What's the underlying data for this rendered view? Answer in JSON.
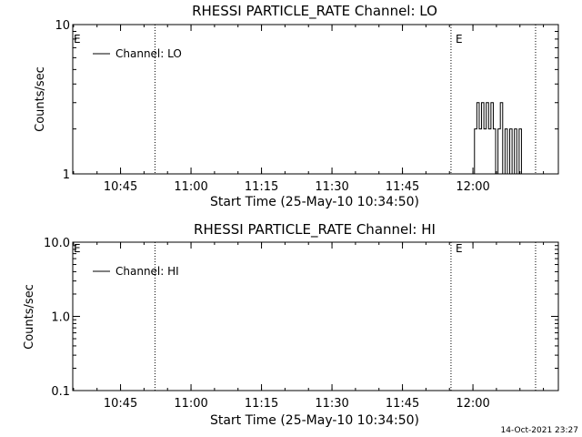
{
  "footer": {
    "timestamp": "14-Oct-2021 23:27"
  },
  "chart_data": [
    {
      "type": "line",
      "title": "RHESSI PARTICLE_RATE Channel: LO",
      "xlabel": "Start Time (25-May-10 10:34:50)",
      "ylabel": "Counts/sec",
      "yscale": "log",
      "ylim": [
        1,
        10
      ],
      "xlim_min_from_start": [
        0,
        92
      ],
      "x_ticks": [
        {
          "label": "10:45",
          "min": 10.17
        },
        {
          "label": "11:00",
          "min": 25.17
        },
        {
          "label": "11:15",
          "min": 40.17
        },
        {
          "label": "11:30",
          "min": 55.17
        },
        {
          "label": "11:45",
          "min": 70.17
        },
        {
          "label": "12:00",
          "min": 85.17
        }
      ],
      "y_ticks": [
        {
          "label": "10",
          "value": 10
        },
        {
          "label": "1",
          "value": 1
        }
      ],
      "event_lines": [
        {
          "min": 17.5,
          "label": ""
        },
        {
          "min": 80.5,
          "label": "E"
        },
        {
          "min": 98.5,
          "label": ""
        }
      ],
      "start_label": "E",
      "legend": {
        "position": "top-left",
        "label": "Channel: LO"
      },
      "series": [
        {
          "name": "Channel: LO",
          "x": [
            85.0,
            85.5,
            86.0,
            86.5,
            87.0,
            87.5,
            88.0,
            88.5,
            89.0,
            89.5,
            90.0,
            90.5,
            91.0,
            91.5,
            92.0,
            92.5,
            93.0,
            93.5,
            94.0,
            94.5,
            95.0,
            95.5,
            96.0
          ],
          "y": [
            1,
            2,
            3,
            2,
            3,
            2,
            3,
            2,
            3,
            2,
            1,
            2,
            3,
            1,
            2,
            1,
            2,
            1,
            2,
            1,
            2,
            1,
            1
          ]
        }
      ]
    },
    {
      "type": "line",
      "title": "RHESSI PARTICLE_RATE Channel: HI",
      "xlabel": "Start Time (25-May-10 10:34:50)",
      "ylabel": "Counts/sec",
      "yscale": "log",
      "ylim": [
        0.1,
        10
      ],
      "xlim_min_from_start": [
        0,
        92
      ],
      "x_ticks": [
        {
          "label": "10:45",
          "min": 10.17
        },
        {
          "label": "11:00",
          "min": 25.17
        },
        {
          "label": "11:15",
          "min": 40.17
        },
        {
          "label": "11:30",
          "min": 55.17
        },
        {
          "label": "11:45",
          "min": 70.17
        },
        {
          "label": "12:00",
          "min": 85.17
        }
      ],
      "y_ticks": [
        {
          "label": "10.0",
          "value": 10
        },
        {
          "label": "1.0",
          "value": 1
        },
        {
          "label": "0.1",
          "value": 0.1
        }
      ],
      "event_lines": [
        {
          "min": 17.5,
          "label": ""
        },
        {
          "min": 80.5,
          "label": "E"
        },
        {
          "min": 98.5,
          "label": ""
        }
      ],
      "start_label": "E",
      "legend": {
        "position": "top-left",
        "label": "Channel: HI"
      },
      "series": [
        {
          "name": "Channel: HI",
          "x": [],
          "y": []
        }
      ]
    }
  ]
}
